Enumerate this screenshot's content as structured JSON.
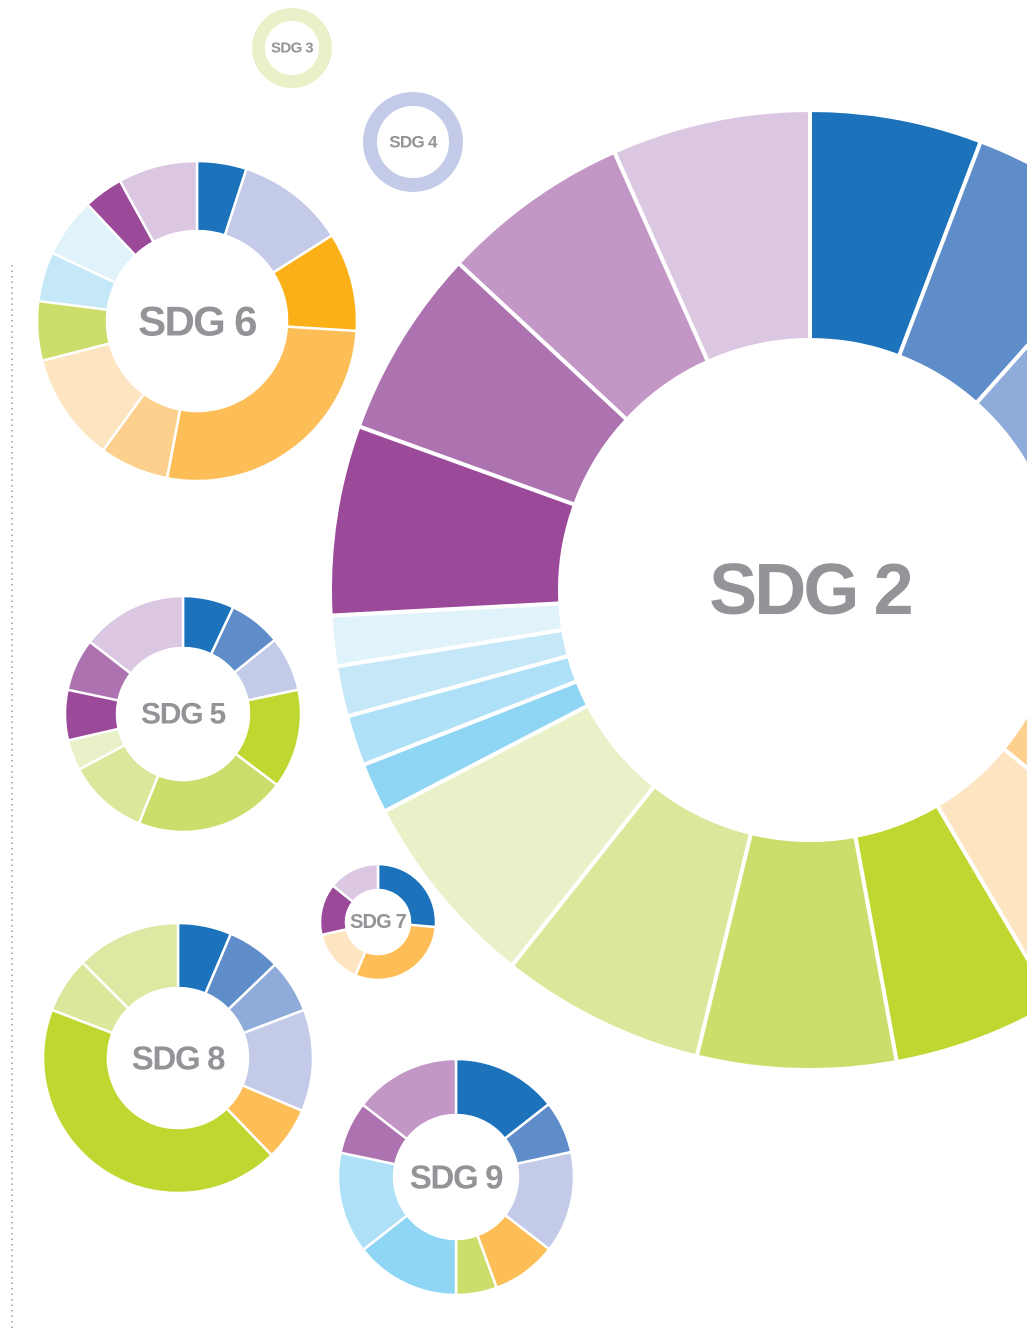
{
  "chart_data": [
    {
      "type": "donut",
      "title": "SDG 3",
      "values": [
        100
      ],
      "colors": [
        "#e9f1c9"
      ]
    },
    {
      "type": "donut",
      "title": "SDG 4",
      "values": [
        100
      ],
      "colors": [
        "#c3cbe8"
      ]
    },
    {
      "type": "donut",
      "title": "SDG 6",
      "values": [
        5,
        11,
        10,
        27,
        7,
        11,
        6,
        5,
        6,
        4,
        8
      ],
      "colors": [
        "#1d73bb",
        "#c3cbe8",
        "#fbb017",
        "#fdbe57",
        "#fdd18d",
        "#fee5c1",
        "#cddd6b",
        "#c5e8f8",
        "#e0f3fb",
        "#9b4a9a",
        "#dcc7e2"
      ]
    },
    {
      "type": "donut",
      "title": "SDG 2",
      "values": [
        5.8,
        5.8,
        6.1,
        6.1,
        6.1,
        6.1,
        5.6,
        5.6,
        6.7,
        6.9,
        6.7,
        1.7,
        1.7,
        1.7,
        1.7,
        6.4,
        6.4,
        6.4,
        6.7
      ],
      "colors": [
        "#1d73bb",
        "#5f8dca",
        "#8fabd9",
        "#c3cbe8",
        "#fdbe57",
        "#fdd18d",
        "#fee5c1",
        "#bfd730",
        "#cddd6b",
        "#dbe79a",
        "#e9f1c9",
        "#8fd6f5",
        "#aee0f7",
        "#c5e8f8",
        "#e0f3fb",
        "#9b4a9a",
        "#ad72b0",
        "#c297c6",
        "#dcc7e2"
      ]
    },
    {
      "type": "donut",
      "title": "SDG 5",
      "values": [
        7,
        7.2,
        7.5,
        13.6,
        20.8,
        11.1,
        4.2,
        6.9,
        7.2,
        14.5
      ],
      "colors": [
        "#1d73bb",
        "#5f8dca",
        "#c3cbe8",
        "#bfd730",
        "#cddd6b",
        "#dbe79a",
        "#e9f1c9",
        "#9b4a9a",
        "#ad72b0",
        "#dcc7e2"
      ]
    },
    {
      "type": "donut",
      "title": "SDG 7",
      "values": [
        26.4,
        30,
        15,
        14.4,
        14.2
      ],
      "colors": [
        "#1d73bb",
        "#fdbe57",
        "#fee5c1",
        "#9b4a9a",
        "#dcc7e2"
      ]
    },
    {
      "type": "donut",
      "title": "SDG 8",
      "values": [
        6.4,
        6.4,
        6.4,
        12.2,
        6.4,
        43,
        6.7,
        12.5
      ],
      "colors": [
        "#1d73bb",
        "#5f8dca",
        "#8fabd9",
        "#c3cbe8",
        "#fdbe57",
        "#bfd730",
        "#dbe79a",
        "#dde8a3"
      ]
    },
    {
      "type": "donut",
      "title": "SDG 9",
      "values": [
        14.4,
        7.2,
        13.9,
        8.9,
        5.6,
        14.4,
        13.9,
        7.2,
        14.5
      ],
      "colors": [
        "#1d73bb",
        "#5f8dca",
        "#c3cbe8",
        "#fdbe57",
        "#cddd6b",
        "#8fd6f5",
        "#aee0f7",
        "#ad72b0",
        "#c297c6"
      ]
    }
  ]
}
